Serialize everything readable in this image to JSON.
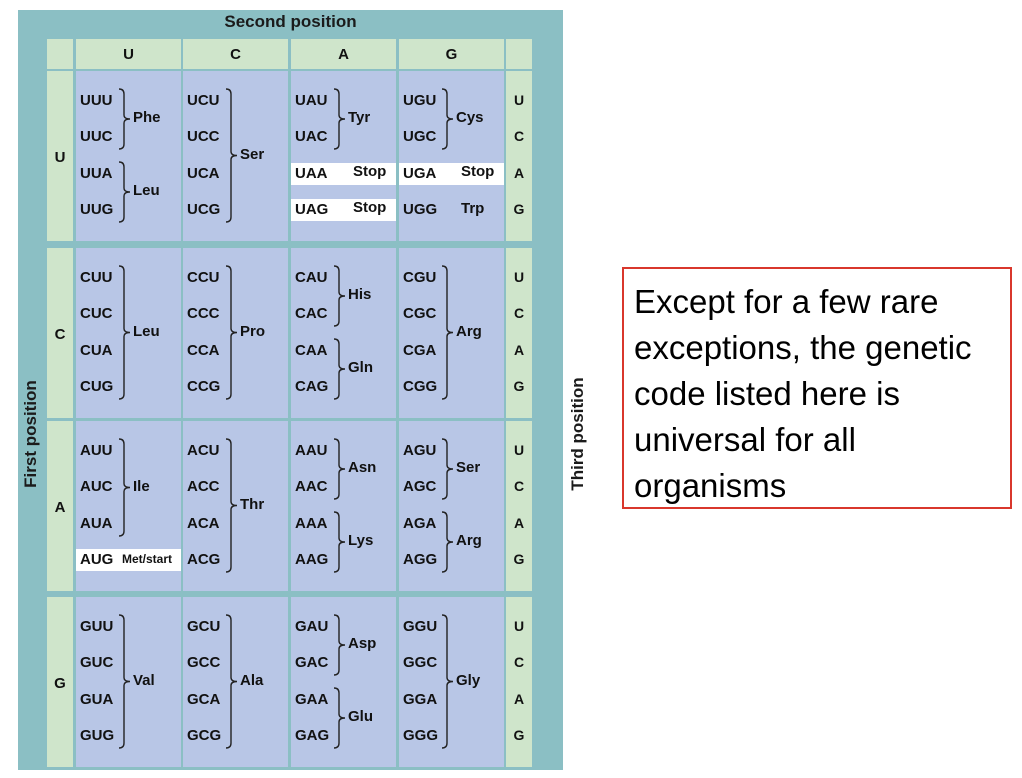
{
  "headers": {
    "second_position": "Second position",
    "first_position": "First position",
    "third_position": "Third position"
  },
  "second_letters": [
    "U",
    "C",
    "A",
    "G"
  ],
  "first_letters": [
    "U",
    "C",
    "A",
    "G"
  ],
  "third_letters": [
    "U",
    "C",
    "A",
    "G"
  ],
  "blocks": [
    [
      {
        "codons": [
          "UUU",
          "UUC",
          "UUA",
          "UUG"
        ],
        "groups": [
          {
            "label": "Phe",
            "rows": [
              0,
              1
            ]
          },
          {
            "label": "Leu",
            "rows": [
              2,
              3
            ]
          }
        ]
      },
      {
        "codons": [
          "UCU",
          "UCC",
          "UCA",
          "UCG"
        ],
        "groups": [
          {
            "label": "Ser",
            "rows": [
              0,
              3
            ]
          }
        ]
      },
      {
        "codons": [
          "UAU",
          "UAC",
          "UAA",
          "UAG"
        ],
        "groups": [
          {
            "label": "Tyr",
            "rows": [
              0,
              1
            ]
          },
          {
            "label": "Stop",
            "rows": [
              2,
              2
            ],
            "white": true
          },
          {
            "label": "Stop",
            "rows": [
              3,
              3
            ],
            "white": true
          }
        ]
      },
      {
        "codons": [
          "UGU",
          "UGC",
          "UGA",
          "UGG"
        ],
        "groups": [
          {
            "label": "Cys",
            "rows": [
              0,
              1
            ]
          },
          {
            "label": "Stop",
            "rows": [
              2,
              2
            ],
            "white": true
          },
          {
            "label": "Trp",
            "rows": [
              3,
              3
            ]
          }
        ]
      }
    ],
    [
      {
        "codons": [
          "CUU",
          "CUC",
          "CUA",
          "CUG"
        ],
        "groups": [
          {
            "label": "Leu",
            "rows": [
              0,
              3
            ]
          }
        ]
      },
      {
        "codons": [
          "CCU",
          "CCC",
          "CCA",
          "CCG"
        ],
        "groups": [
          {
            "label": "Pro",
            "rows": [
              0,
              3
            ]
          }
        ]
      },
      {
        "codons": [
          "CAU",
          "CAC",
          "CAA",
          "CAG"
        ],
        "groups": [
          {
            "label": "His",
            "rows": [
              0,
              1
            ]
          },
          {
            "label": "Gln",
            "rows": [
              2,
              3
            ]
          }
        ]
      },
      {
        "codons": [
          "CGU",
          "CGC",
          "CGA",
          "CGG"
        ],
        "groups": [
          {
            "label": "Arg",
            "rows": [
              0,
              3
            ]
          }
        ]
      }
    ],
    [
      {
        "codons": [
          "AUU",
          "AUC",
          "AUA",
          "AUG"
        ],
        "groups": [
          {
            "label": "Ile",
            "rows": [
              0,
              2
            ]
          },
          {
            "label": "Met/start",
            "rows": [
              3,
              3
            ],
            "white": true
          }
        ]
      },
      {
        "codons": [
          "ACU",
          "ACC",
          "ACA",
          "ACG"
        ],
        "groups": [
          {
            "label": "Thr",
            "rows": [
              0,
              3
            ]
          }
        ]
      },
      {
        "codons": [
          "AAU",
          "AAC",
          "AAA",
          "AAG"
        ],
        "groups": [
          {
            "label": "Asn",
            "rows": [
              0,
              1
            ]
          },
          {
            "label": "Lys",
            "rows": [
              2,
              3
            ]
          }
        ]
      },
      {
        "codons": [
          "AGU",
          "AGC",
          "AGA",
          "AGG"
        ],
        "groups": [
          {
            "label": "Ser",
            "rows": [
              0,
              1
            ]
          },
          {
            "label": "Arg",
            "rows": [
              2,
              3
            ]
          }
        ]
      }
    ],
    [
      {
        "codons": [
          "GUU",
          "GUC",
          "GUA",
          "GUG"
        ],
        "groups": [
          {
            "label": "Val",
            "rows": [
              0,
              3
            ]
          }
        ]
      },
      {
        "codons": [
          "GCU",
          "GCC",
          "GCA",
          "GCG"
        ],
        "groups": [
          {
            "label": "Ala",
            "rows": [
              0,
              3
            ]
          }
        ]
      },
      {
        "codons": [
          "GAU",
          "GAC",
          "GAA",
          "GAG"
        ],
        "groups": [
          {
            "label": "Asp",
            "rows": [
              0,
              1
            ]
          },
          {
            "label": "Glu",
            "rows": [
              2,
              3
            ]
          }
        ]
      },
      {
        "codons": [
          "GGU",
          "GGC",
          "GGA",
          "GGG"
        ],
        "groups": [
          {
            "label": "Gly",
            "rows": [
              0,
              3
            ]
          }
        ]
      }
    ]
  ],
  "note": "Except for a few rare exceptions, the genetic code listed here is universal for all organisms",
  "colors": {
    "frame": "#8bbfc4",
    "header_cell": "#cfe5cb",
    "codon_block": "#b8c6e6",
    "note_border": "#d9372c"
  }
}
